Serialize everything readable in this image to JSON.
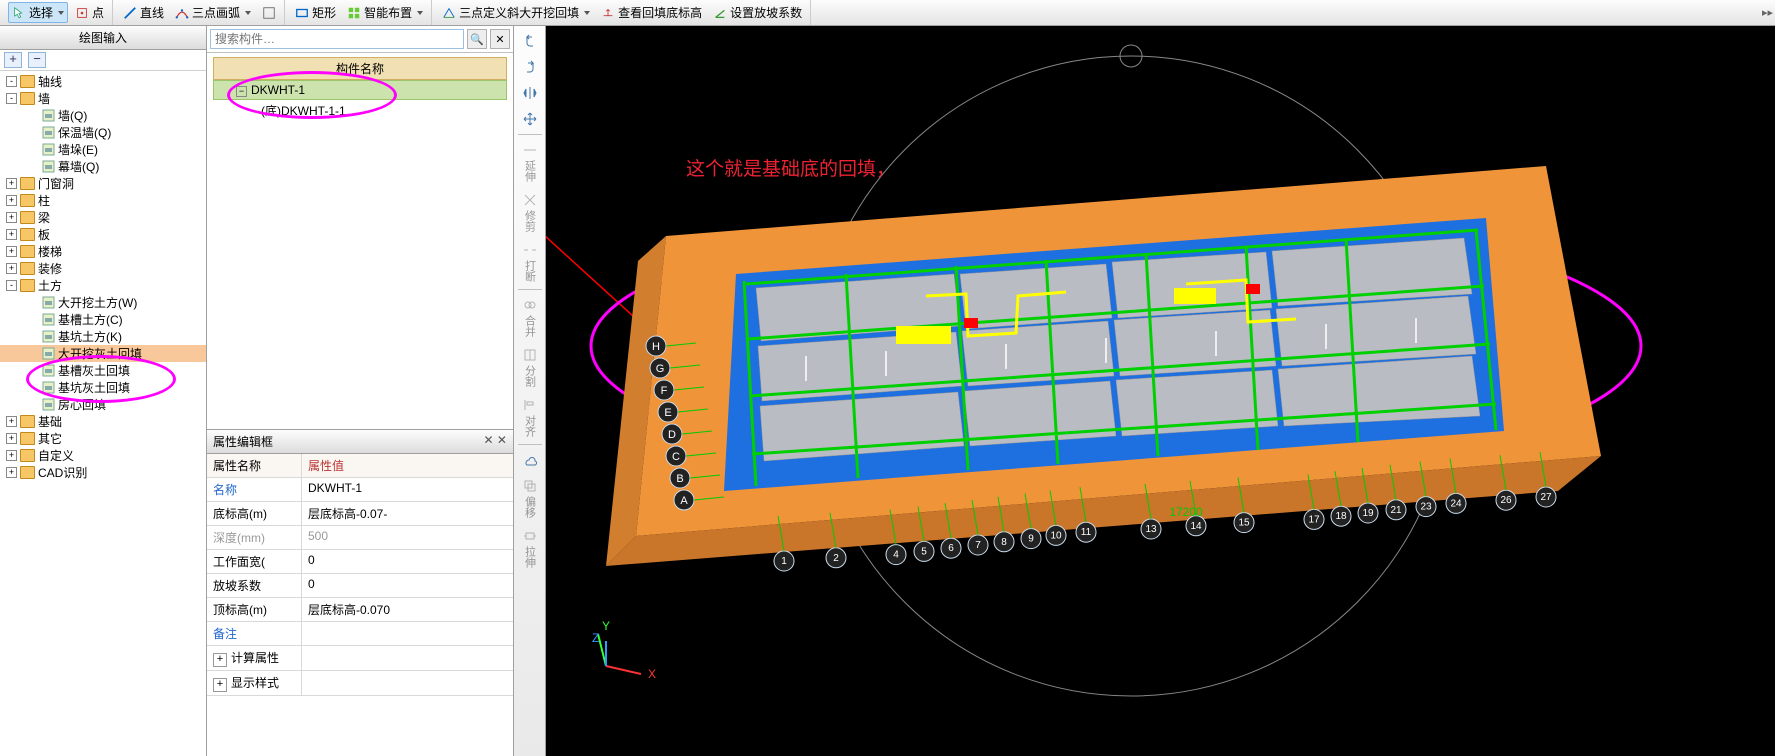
{
  "toolbar": {
    "select": "选择",
    "point": "点",
    "line": "直线",
    "arc3": "三点画弧",
    "rect": "矩形",
    "smart": "智能布置",
    "slope3": "三点定义斜大开挖回填",
    "elev": "查看回填底标高",
    "coef": "设置放坡系数"
  },
  "left": {
    "title": "绘图输入",
    "items": [
      {
        "lv": 0,
        "exp": "-",
        "t": "folder",
        "label": "轴线"
      },
      {
        "lv": 0,
        "exp": "-",
        "t": "folder",
        "label": "墙"
      },
      {
        "lv": 1,
        "exp": "",
        "t": "wall",
        "label": "墙(Q)"
      },
      {
        "lv": 1,
        "exp": "",
        "t": "wall",
        "label": "保温墙(Q)"
      },
      {
        "lv": 1,
        "exp": "",
        "t": "wall",
        "label": "墙垛(E)"
      },
      {
        "lv": 1,
        "exp": "",
        "t": "wall",
        "label": "幕墙(Q)"
      },
      {
        "lv": 0,
        "exp": "+",
        "t": "folder",
        "label": "门窗洞"
      },
      {
        "lv": 0,
        "exp": "+",
        "t": "folder",
        "label": "柱"
      },
      {
        "lv": 0,
        "exp": "+",
        "t": "folder",
        "label": "梁"
      },
      {
        "lv": 0,
        "exp": "+",
        "t": "folder",
        "label": "板"
      },
      {
        "lv": 0,
        "exp": "+",
        "t": "folder",
        "label": "楼梯"
      },
      {
        "lv": 0,
        "exp": "+",
        "t": "folder",
        "label": "装修"
      },
      {
        "lv": 0,
        "exp": "-",
        "t": "folder",
        "label": "土方"
      },
      {
        "lv": 1,
        "exp": "",
        "t": "earth",
        "label": "大开挖土方(W)"
      },
      {
        "lv": 1,
        "exp": "",
        "t": "earth",
        "label": "基槽土方(C)"
      },
      {
        "lv": 1,
        "exp": "",
        "t": "earth",
        "label": "基坑土方(K)"
      },
      {
        "lv": 1,
        "exp": "",
        "t": "earth",
        "label": "大开挖灰土回填",
        "sel": true
      },
      {
        "lv": 1,
        "exp": "",
        "t": "earth",
        "label": "基槽灰土回填"
      },
      {
        "lv": 1,
        "exp": "",
        "t": "earth",
        "label": "基坑灰土回填"
      },
      {
        "lv": 1,
        "exp": "",
        "t": "earth",
        "label": "房心回填"
      },
      {
        "lv": 0,
        "exp": "+",
        "t": "folder",
        "label": "基础"
      },
      {
        "lv": 0,
        "exp": "+",
        "t": "folder",
        "label": "其它"
      },
      {
        "lv": 0,
        "exp": "+",
        "t": "folder",
        "label": "自定义"
      },
      {
        "lv": 0,
        "exp": "+",
        "t": "folder",
        "label": "CAD识别"
      }
    ]
  },
  "mid": {
    "search_ph": "搜索构件…",
    "list_head": "构件名称",
    "item1": "DKWHT-1",
    "item2": "(底)DKWHT-1-1",
    "prop_title": "属性编辑框",
    "head_name": "属性名称",
    "head_val": "属性值",
    "rows": [
      {
        "n": "名称",
        "v": "DKWHT-1",
        "blue": true
      },
      {
        "n": "底标高(m)",
        "v": "层底标高-0.07-"
      },
      {
        "n": "深度(mm)",
        "v": "500",
        "gray": true
      },
      {
        "n": "工作面宽(",
        "v": "0"
      },
      {
        "n": "放坡系数",
        "v": "0"
      },
      {
        "n": "顶标高(m)",
        "v": "层底标高-0.070"
      },
      {
        "n": "备注",
        "v": "",
        "blue": true
      }
    ],
    "calc": "计算属性",
    "disp": "显示样式"
  },
  "vtools": {
    "t1": "延伸",
    "t2": "修剪",
    "t3": "打断",
    "t4": "合并",
    "t5": "分割",
    "t6": "对齐",
    "t7": "偏移",
    "t8": "拉伸"
  },
  "viewport": {
    "annot_text": "这个就是基础底的回填，",
    "grid_letters": [
      "H",
      "G",
      "F",
      "E",
      "D",
      "C",
      "B",
      "A"
    ],
    "grid_nums": [
      "1",
      "2",
      "4",
      "5",
      "6",
      "7",
      "8",
      "9",
      "10",
      "11",
      "13",
      "14",
      "15",
      "17",
      "18",
      "19",
      "21",
      "23",
      "24",
      "26",
      "27"
    ],
    "grid_dim": "17200",
    "colors": {
      "soil": "#f0943a",
      "slab": "#1e6fe0",
      "conc": "#b9bcc3",
      "grid": "#00d000",
      "grid2": "#ffff00",
      "mark": "#ffffff",
      "red": "#ff0000",
      "magenta": "#ff00ff"
    }
  }
}
